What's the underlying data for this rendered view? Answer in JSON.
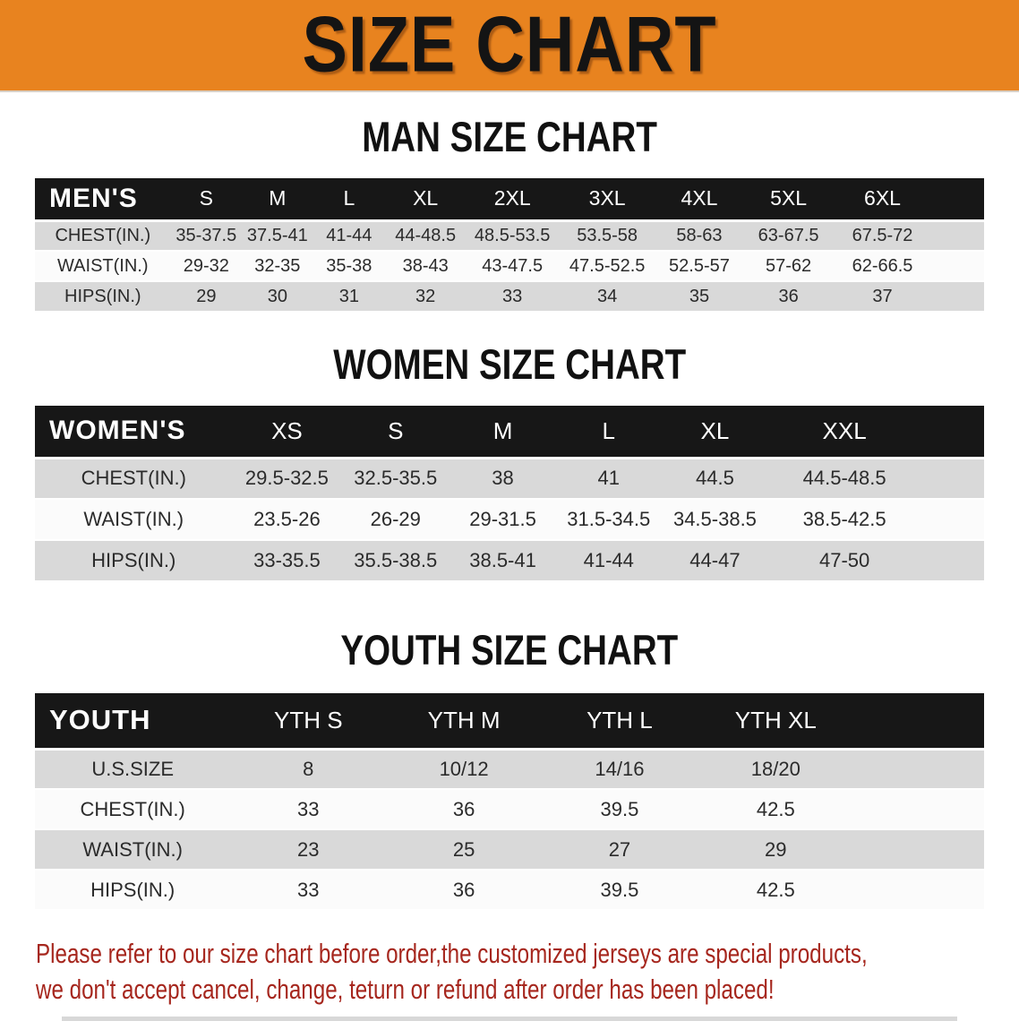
{
  "banner": {
    "title": "SIZE CHART"
  },
  "colors": {
    "banner_bg": "#E8831F",
    "header_bg": "#171717",
    "row_gray": "#D9D9D9",
    "row_white": "#FBFBFB",
    "note_red": "#A6271E"
  },
  "sections": [
    {
      "heading": "MAN SIZE CHART",
      "group_label": "MEN'S",
      "columns": [
        "S",
        "M",
        "L",
        "XL",
        "2XL",
        "3XL",
        "4XL",
        "5XL",
        "6XL"
      ],
      "rows": [
        {
          "label": "CHEST(IN.)",
          "values": [
            "35-37.5",
            "37.5-41",
            "41-44",
            "44-48.5",
            "48.5-53.5",
            "53.5-58",
            "58-63",
            "63-67.5",
            "67.5-72"
          ]
        },
        {
          "label": "WAIST(IN.)",
          "values": [
            "29-32",
            "32-35",
            "35-38",
            "38-43",
            "43-47.5",
            "47.5-52.5",
            "52.5-57",
            "57-62",
            "62-66.5"
          ]
        },
        {
          "label": "HIPS(IN.)",
          "values": [
            "29",
            "30",
            "31",
            "32",
            "33",
            "34",
            "35",
            "36",
            "37"
          ]
        }
      ]
    },
    {
      "heading": "WOMEN SIZE CHART",
      "group_label": "WOMEN'S",
      "columns": [
        "XS",
        "S",
        "M",
        "L",
        "XL",
        "XXL"
      ],
      "rows": [
        {
          "label": "CHEST(IN.)",
          "values": [
            "29.5-32.5",
            "32.5-35.5",
            "38",
            "41",
            "44.5",
            "44.5-48.5"
          ]
        },
        {
          "label": "WAIST(IN.)",
          "values": [
            "23.5-26",
            "26-29",
            "29-31.5",
            "31.5-34.5",
            "34.5-38.5",
            "38.5-42.5"
          ]
        },
        {
          "label": "HIPS(IN.)",
          "values": [
            "33-35.5",
            "35.5-38.5",
            "38.5-41",
            "41-44",
            "44-47",
            "47-50"
          ]
        }
      ]
    },
    {
      "heading": "YOUTH SIZE CHART",
      "group_label": "YOUTH",
      "columns": [
        "YTH S",
        "YTH M",
        "YTH L",
        "YTH XL"
      ],
      "rows": [
        {
          "label": "U.S.SIZE",
          "values": [
            "8",
            "10/12",
            "14/16",
            "18/20"
          ]
        },
        {
          "label": "CHEST(IN.)",
          "values": [
            "33",
            "36",
            "39.5",
            "42.5"
          ]
        },
        {
          "label": "WAIST(IN.)",
          "values": [
            "23",
            "25",
            "27",
            "29"
          ]
        },
        {
          "label": "HIPS(IN.)",
          "values": [
            "33",
            "36",
            "39.5",
            "42.5"
          ]
        }
      ]
    }
  ],
  "footer": {
    "note_line1": "Please refer to our size chart before order,the customized jerseys are special products,",
    "note_line2": "we don't accept cancel, change, teturn or refund after order has been placed!"
  }
}
